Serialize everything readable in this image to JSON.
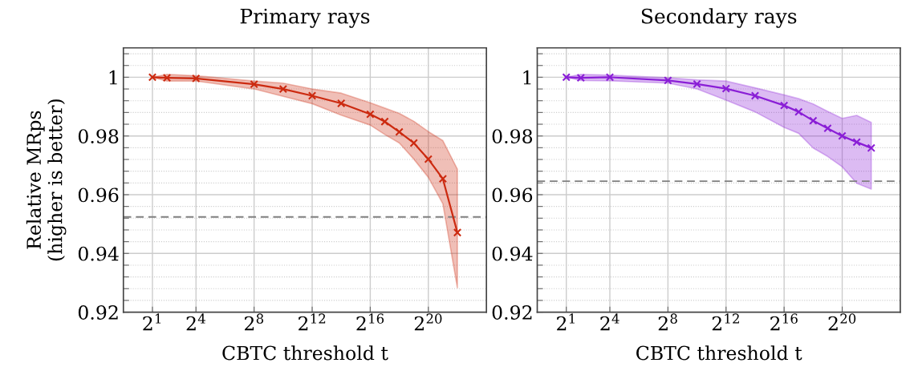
{
  "chart_data": [
    {
      "type": "line",
      "title": "Primary rays",
      "xlabel": "CBTC threshold t",
      "ylabel": "Relative MRps\n(higher is better)",
      "log": "x",
      "grid": true,
      "marker": "cross",
      "line_style": "solid",
      "x": [
        2,
        4,
        16,
        256,
        1024,
        4096,
        16384,
        65536,
        131072,
        262144,
        524288,
        1048576,
        2097152,
        4194304
      ],
      "series": [
        {
          "color": "#cc2a10",
          "values": [
            1.0,
            0.9998,
            0.9996,
            0.9976,
            0.996,
            0.9937,
            0.9911,
            0.9874,
            0.9849,
            0.9814,
            0.9776,
            0.9721,
            0.9654,
            0.9471
          ],
          "upper": [
            1.0,
            1.001,
            1.0005,
            0.9987,
            0.998,
            0.996,
            0.9946,
            0.9913,
            0.9895,
            0.9877,
            0.985,
            0.9815,
            0.9784,
            0.9687
          ],
          "lower": [
            1.0,
            0.9987,
            0.9987,
            0.996,
            0.9935,
            0.991,
            0.9871,
            0.9837,
            0.9805,
            0.9776,
            0.9721,
            0.9659,
            0.9569,
            0.9283
          ]
        }
      ],
      "ref_lines": [
        {
          "axis": "y",
          "value": 0.9524,
          "color": "#808080",
          "line_style": "dashed"
        }
      ],
      "xlim": [
        0.5,
        16777216
      ],
      "xticks": [
        {
          "value": 2,
          "label": "2$^{1}$"
        },
        {
          "value": 16,
          "label": "2$^{4}$"
        },
        {
          "value": 256,
          "label": "2$^{8}$"
        },
        {
          "value": 4096,
          "label": "2$^{12}$"
        },
        {
          "value": 65536,
          "label": "2$^{16}$"
        },
        {
          "value": 1048576,
          "label": "2$^{20}$"
        }
      ],
      "ylim": [
        0.92,
        1.01
      ],
      "yticks": [
        0.92,
        {
          "value": 0.924,
          "label": null
        },
        {
          "value": 0.928,
          "label": null
        },
        {
          "value": 0.932,
          "label": null
        },
        {
          "value": 0.936,
          "label": null
        },
        0.94,
        {
          "value": 0.944,
          "label": null
        },
        {
          "value": 0.948,
          "label": null
        },
        {
          "value": 0.952,
          "label": null
        },
        {
          "value": 0.956,
          "label": null
        },
        0.96,
        {
          "value": 0.964,
          "label": null
        },
        {
          "value": 0.968,
          "label": null
        },
        {
          "value": 0.972,
          "label": null
        },
        {
          "value": 0.976,
          "label": null
        },
        0.98,
        {
          "value": 0.984,
          "label": null
        },
        {
          "value": 0.988,
          "label": null
        },
        {
          "value": 0.992,
          "label": null
        },
        {
          "value": 0.996,
          "label": null
        },
        1,
        {
          "value": 1.004,
          "label": null
        },
        {
          "value": 1.008,
          "label": null
        }
      ]
    },
    {
      "type": "line",
      "title": "Secondary rays",
      "xlabel": "CBTC threshold t",
      "log": "x",
      "grid": true,
      "marker": "cross",
      "line_style": "solid",
      "x": [
        2,
        4,
        16,
        256,
        1024,
        4096,
        16384,
        65536,
        131072,
        262144,
        524288,
        1048576,
        2097152,
        4194304
      ],
      "series": [
        {
          "color": "#8a1ed6",
          "values": [
            1.0,
            0.9998,
            1.0,
            0.9989,
            0.9977,
            0.9961,
            0.9937,
            0.9904,
            0.9882,
            0.9852,
            0.9826,
            0.98,
            0.9779,
            0.9759
          ],
          "upper": [
            1.0,
            1.001,
            1.0007,
            0.9998,
            0.9991,
            0.9987,
            0.9964,
            0.994,
            0.9927,
            0.9909,
            0.9884,
            0.986,
            0.987,
            0.9846
          ],
          "lower": [
            1.0,
            0.9989,
            0.9988,
            0.998,
            0.996,
            0.9922,
            0.9882,
            0.9829,
            0.9809,
            0.9759,
            0.973,
            0.9695,
            0.9639,
            0.9619
          ]
        }
      ],
      "ref_lines": [
        {
          "axis": "y",
          "value": 0.9646,
          "color": "#808080",
          "line_style": "dashed"
        }
      ],
      "xlim": [
        0.5,
        16777216
      ],
      "xticks": [
        {
          "value": 2,
          "label": "2$^{1}$"
        },
        {
          "value": 16,
          "label": "2$^{4}$"
        },
        {
          "value": 256,
          "label": "2$^{8}$"
        },
        {
          "value": 4096,
          "label": "2$^{12}$"
        },
        {
          "value": 65536,
          "label": "2$^{16}$"
        },
        {
          "value": 1048576,
          "label": "2$^{20}$"
        }
      ],
      "ylim": [
        0.92,
        1.01
      ],
      "yticks": [
        0.92,
        {
          "value": 0.924,
          "label": null
        },
        {
          "value": 0.928,
          "label": null
        },
        {
          "value": 0.932,
          "label": null
        },
        {
          "value": 0.936,
          "label": null
        },
        0.94,
        {
          "value": 0.944,
          "label": null
        },
        {
          "value": 0.948,
          "label": null
        },
        {
          "value": 0.952,
          "label": null
        },
        {
          "value": 0.956,
          "label": null
        },
        0.96,
        {
          "value": 0.964,
          "label": null
        },
        {
          "value": 0.968,
          "label": null
        },
        {
          "value": 0.972,
          "label": null
        },
        {
          "value": 0.976,
          "label": null
        },
        0.98,
        {
          "value": 0.984,
          "label": null
        },
        {
          "value": 0.988,
          "label": null
        },
        {
          "value": 0.992,
          "label": null
        },
        {
          "value": 0.996,
          "label": null
        },
        1,
        {
          "value": 1.004,
          "label": null
        },
        {
          "value": 1.008,
          "label": null
        }
      ]
    }
  ]
}
